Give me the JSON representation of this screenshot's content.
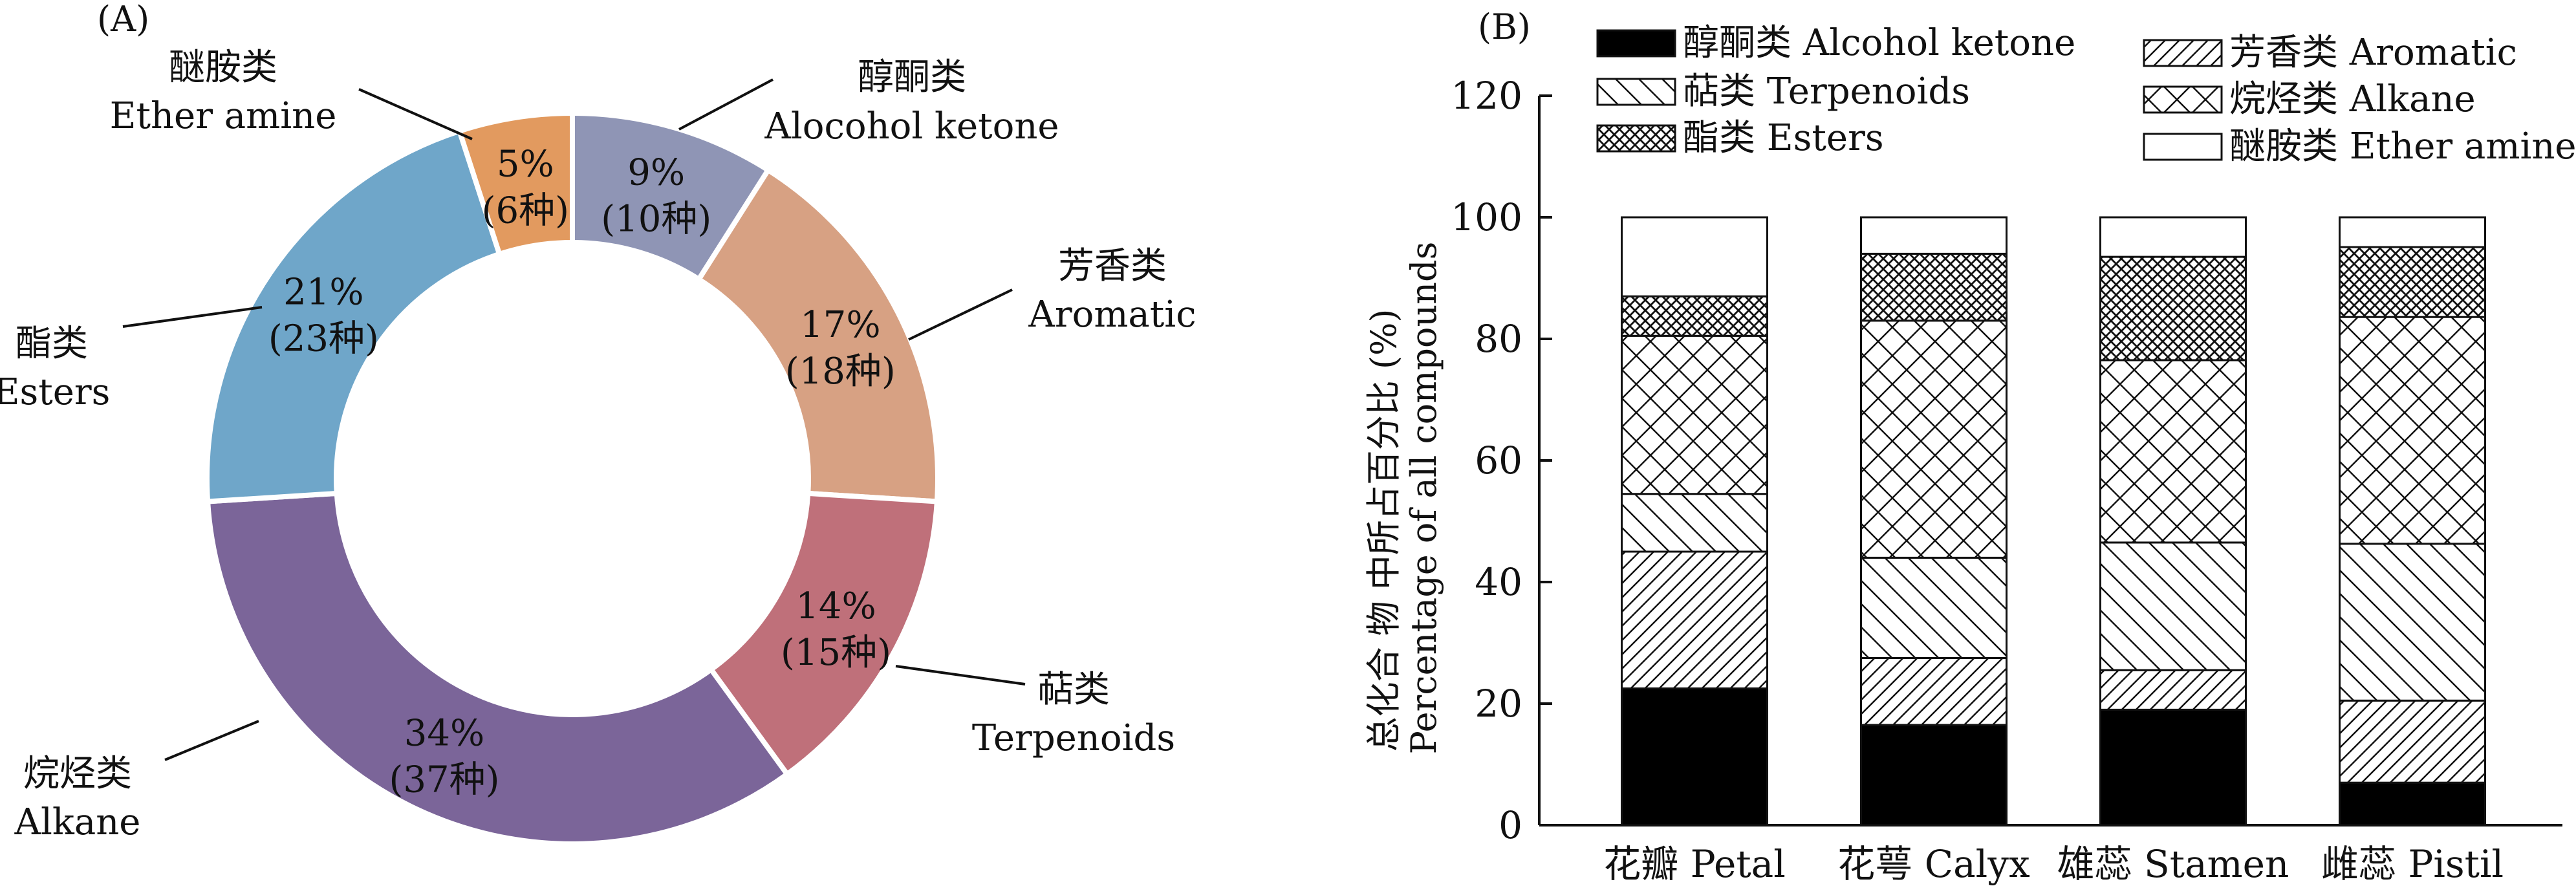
{
  "chart_data": [
    {
      "type": "pie",
      "panel_label": "(A)",
      "donut": true,
      "slices": [
        {
          "name_cn": "醇酮类",
          "name_en": "Alocohol ketone",
          "percent_label": "9%",
          "count_label": "(10种)",
          "value": 9,
          "color": "#8F95B5"
        },
        {
          "name_cn": "芳香类",
          "name_en": "Aromatic",
          "percent_label": "17%",
          "count_label": "(18种)",
          "value": 17,
          "color": "#D7A183"
        },
        {
          "name_cn": "萜类",
          "name_en": "Terpenoids",
          "percent_label": "14%",
          "count_label": "(15种)",
          "value": 14,
          "color": "#BF707A"
        },
        {
          "name_cn": "烷烃类",
          "name_en": "Alkane",
          "percent_label": "34%",
          "count_label": "(37种)",
          "value": 34,
          "color": "#7B6599"
        },
        {
          "name_cn": "酯类",
          "name_en": "Esters",
          "percent_label": "21%",
          "count_label": "(23种)",
          "value": 21,
          "color": "#6FA6C9"
        },
        {
          "name_cn": "醚胺类",
          "name_en": "Ether amine",
          "percent_label": "5%",
          "count_label": "(6种)",
          "value": 5,
          "color": "#E29A5F"
        }
      ]
    },
    {
      "type": "bar",
      "stacked": true,
      "panel_label": "(B)",
      "categories": [
        "花瓣 Petal",
        "花萼 Calyx",
        "雄蕊 Stamen",
        "雌蕊 Pistil"
      ],
      "ylabel_cn": "总化合 物 中所占百分比 (%)",
      "ylabel_en": "Percentage of all compounds",
      "ylim": [
        0,
        120
      ],
      "yticks": [
        0,
        20,
        40,
        60,
        80,
        100,
        120
      ],
      "grid": false,
      "legend_placement": "top",
      "series": [
        {
          "name": "醇酮类 Alcohol ketone",
          "pattern": "solid",
          "values": [
            22.5,
            16.5,
            19,
            7
          ]
        },
        {
          "name": "芳香类 Aromatic",
          "pattern": "fwd",
          "values": [
            22.5,
            11,
            6.5,
            13.5
          ]
        },
        {
          "name": "萜类 Terpenoids",
          "pattern": "back",
          "values": [
            9.5,
            16.5,
            21,
            25.8
          ]
        },
        {
          "name": "烷烃类 Alkane",
          "pattern": "cross",
          "values": [
            26,
            39,
            30,
            37.3
          ]
        },
        {
          "name": "酯类 Esters",
          "pattern": "dense",
          "values": [
            6.5,
            11,
            17,
            11.5
          ]
        },
        {
          "name": "醚胺类 Ether amine",
          "pattern": "white",
          "values": [
            13,
            6,
            6.5,
            4.9
          ]
        }
      ]
    }
  ]
}
